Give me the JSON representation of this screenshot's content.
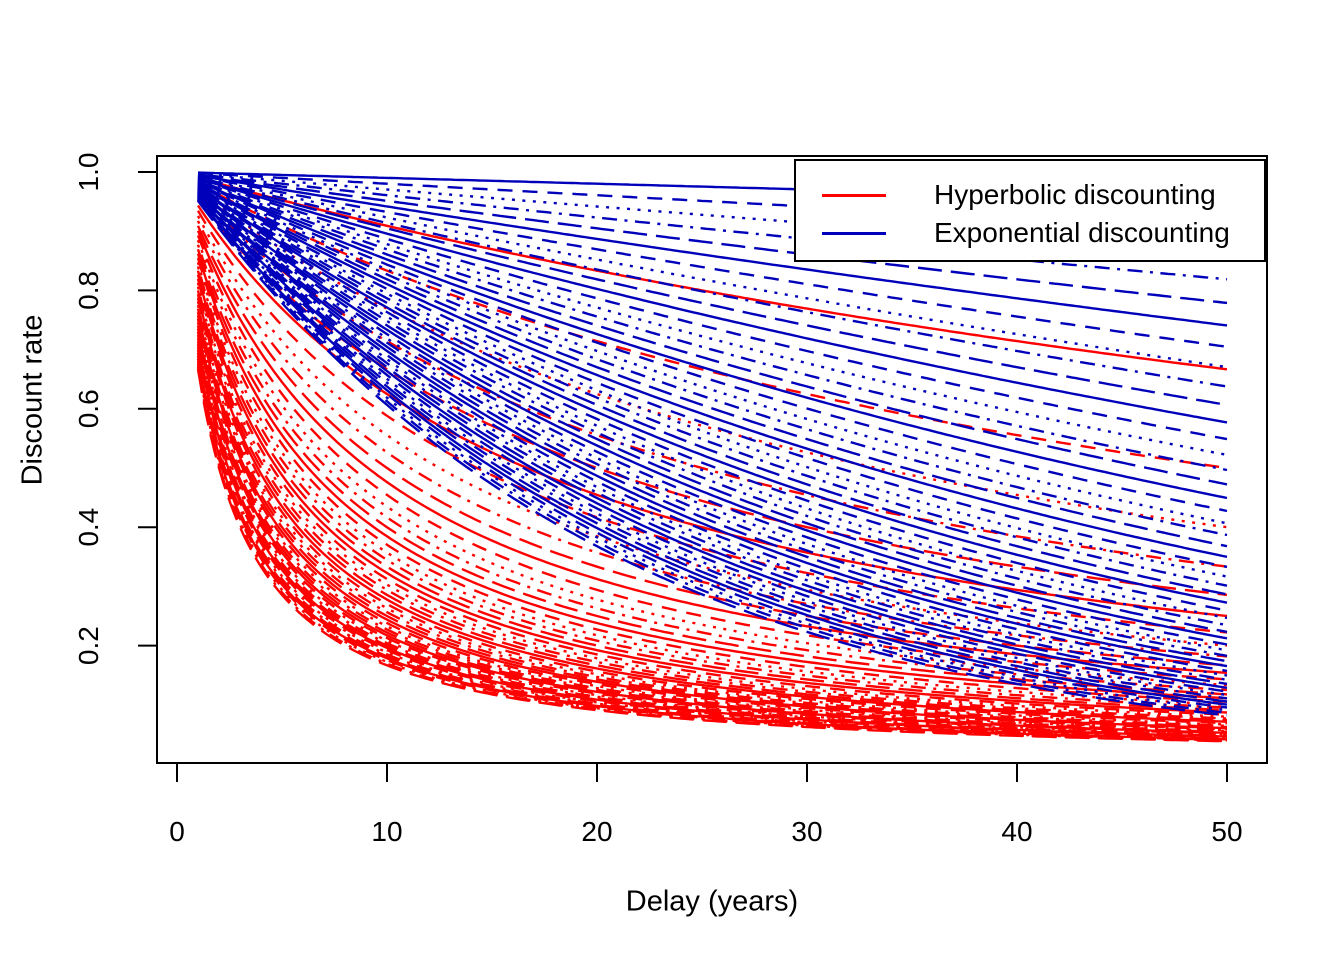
{
  "figure": {
    "background_color": "#ffffff",
    "x_axis": {
      "title": "Delay (years)"
    },
    "y_axis": {
      "title": "Discount rate"
    },
    "legend": {
      "items": [
        {
          "label": "Hyperbolic discounting",
          "color": "#ff0000"
        },
        {
          "label": "Exponential discounting",
          "color": "#0000bb"
        }
      ]
    }
  },
  "chart_data": {
    "type": "line",
    "title": "",
    "xlabel": "Delay (years)",
    "ylabel": "Discount rate",
    "x_range": [
      1,
      50
    ],
    "xlim": [
      -0.96,
      51.96
    ],
    "ylim": [
      0.0,
      1.038
    ],
    "x_ticks": [
      0,
      10,
      20,
      30,
      40,
      50
    ],
    "x_tick_labels": [
      "0",
      "10",
      "20",
      "30",
      "40",
      "50"
    ],
    "y_ticks": [
      0.2,
      0.4,
      0.6,
      0.8,
      1.0
    ],
    "y_tick_labels": [
      "0.2",
      "0.4",
      "0.6",
      "0.8",
      "1.0"
    ],
    "grid": false,
    "legend_position": "topright",
    "line_type_cycle": [
      "solid",
      "dashed",
      "dotted",
      "dotdash",
      "longdash"
    ],
    "series_groups": [
      {
        "name": "Hyperbolic discounting",
        "kind": "hyperbolic",
        "formula": "value = 1 / (1 + k * t)",
        "color": "#ff0000",
        "draw_order": 1,
        "k_values": [
          0.01,
          0.02,
          0.03,
          0.04,
          0.05,
          0.06,
          0.07,
          0.08,
          0.09,
          0.1,
          0.11,
          0.12,
          0.13,
          0.14,
          0.15,
          0.16,
          0.17,
          0.18,
          0.19,
          0.2,
          0.21,
          0.22,
          0.23,
          0.24,
          0.25,
          0.26,
          0.27,
          0.28,
          0.29,
          0.3,
          0.31,
          0.32,
          0.33,
          0.34,
          0.35,
          0.36,
          0.37,
          0.38,
          0.39,
          0.4,
          0.41,
          0.42,
          0.43,
          0.44,
          0.45,
          0.46,
          0.47,
          0.48,
          0.49,
          0.5
        ]
      },
      {
        "name": "Exponential discounting",
        "kind": "exponential",
        "formula": "value = exp(-k * t)",
        "color": "#0000bb",
        "draw_order": 2,
        "k_values": [
          0.001,
          0.002,
          0.003,
          0.004,
          0.005,
          0.006,
          0.007,
          0.008,
          0.009,
          0.01,
          0.011,
          0.012,
          0.013,
          0.014,
          0.015,
          0.016,
          0.017,
          0.018,
          0.019,
          0.02,
          0.021,
          0.022,
          0.023,
          0.024,
          0.025,
          0.026,
          0.027,
          0.028,
          0.029,
          0.03,
          0.031,
          0.032,
          0.033,
          0.034,
          0.035,
          0.036,
          0.037,
          0.038,
          0.039,
          0.04,
          0.041,
          0.042,
          0.043,
          0.044,
          0.045,
          0.046,
          0.047,
          0.048,
          0.049,
          0.05
        ]
      }
    ]
  }
}
